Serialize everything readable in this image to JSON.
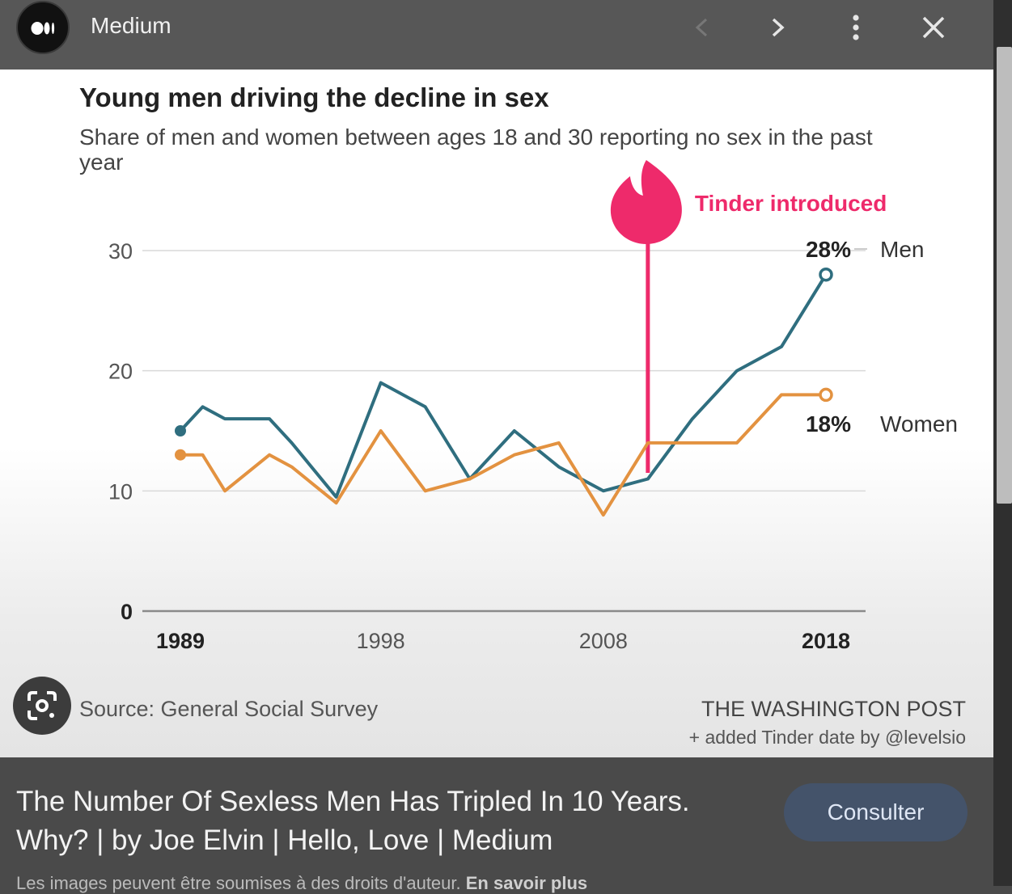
{
  "header": {
    "site_name": "Medium",
    "icons": [
      "medium-logo-icon",
      "chevron-left-icon",
      "chevron-right-icon",
      "more-vertical-icon",
      "close-icon"
    ]
  },
  "colors": {
    "men": "#2f6e7f",
    "women": "#e39240",
    "tinder": "#ee2a6b"
  },
  "chart_data": {
    "type": "line",
    "title": "Young men driving the decline in sex",
    "subtitle_line1": "Share of men and women between ages 18 and 30 reporting no sex in the past",
    "subtitle_line2": "year",
    "x_ticks": [
      "1989",
      "1998",
      "2008",
      "2018"
    ],
    "y_ticks": [
      "30",
      "20",
      "10",
      "0"
    ],
    "ylim": [
      0,
      30
    ],
    "xlim": [
      1989,
      2018
    ],
    "grid": true,
    "series": [
      {
        "name": "Men",
        "end_label": "28%",
        "x": [
          1989,
          1990,
          1991,
          1993,
          1994,
          1996,
          1998,
          2000,
          2002,
          2004,
          2006,
          2008,
          2010,
          2012,
          2014,
          2016,
          2018
        ],
        "values": [
          15,
          17,
          16,
          16,
          14,
          9.5,
          19,
          17,
          11,
          15,
          12,
          10,
          11,
          16,
          20,
          22,
          28
        ]
      },
      {
        "name": "Women",
        "end_label": "18%",
        "x": [
          1989,
          1990,
          1991,
          1993,
          1994,
          1996,
          1998,
          2000,
          2002,
          2004,
          2006,
          2008,
          2010,
          2012,
          2014,
          2016,
          2018
        ],
        "values": [
          13,
          13,
          10,
          13,
          12,
          9,
          15,
          10,
          11,
          13,
          14,
          8,
          14,
          14,
          14,
          18,
          18
        ]
      }
    ],
    "annotation": {
      "label": "Tinder introduced",
      "x": 2010,
      "icon": "tinder-flame-icon"
    },
    "source": "Source: General Social Survey",
    "credit": "THE WASHINGTON POST",
    "credit_note": "+ added Tinder date by @levelsio"
  },
  "caption": {
    "title": "The Number Of Sexless Men Has Tripled In 10 Years. Why? | by Joe Elvin | Hello, Love | Medium",
    "button_label": "Consulter",
    "disclaimer": "Les images peuvent être soumises à des droits d'auteur.",
    "learn_more": "En savoir plus"
  }
}
